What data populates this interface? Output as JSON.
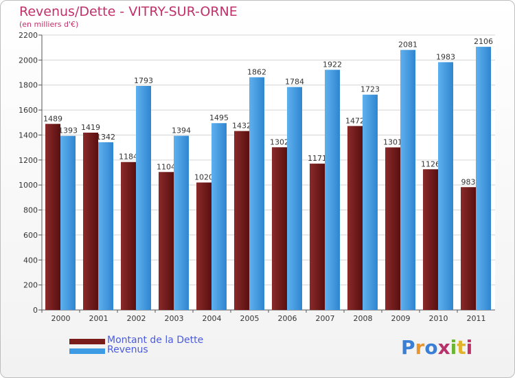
{
  "chart_data": {
    "type": "bar",
    "title": "Revenus/Dette - VITRY-SUR-ORNE",
    "subtitle": "(en milliers d'€)",
    "categories": [
      "2000",
      "2001",
      "2002",
      "2003",
      "2004",
      "2005",
      "2006",
      "2007",
      "2008",
      "2009",
      "2010",
      "2011"
    ],
    "series": [
      {
        "name": "Montant de la Dette",
        "color": "#7a1c1c",
        "values": [
          1489,
          1419,
          1184,
          1104,
          1020,
          1432,
          1302,
          1171,
          1472,
          1301,
          1126,
          983
        ],
        "labels": [
          "1489",
          "1419",
          "1184",
          "1104",
          "1020",
          "1432",
          "1302",
          "1171",
          "1472",
          "1301",
          "1126",
          "983"
        ]
      },
      {
        "name": "Revenus",
        "color": "#3d9be3",
        "values": [
          1393,
          1342,
          1793,
          1394,
          1495,
          1862,
          1784,
          1922,
          1723,
          2081,
          1983,
          2106
        ],
        "labels": [
          "1393",
          "1342",
          "1793",
          "1394",
          "1495",
          "1862",
          "1784",
          "1922",
          "1723",
          "2081",
          "1983",
          "2106"
        ]
      }
    ],
    "yticks": [
      "0",
      "200",
      "400",
      "600",
      "800",
      "1000",
      "1200",
      "1400",
      "1600",
      "1800",
      "2000",
      "2200"
    ],
    "ylim": [
      0,
      2200
    ],
    "grid": true,
    "legend": "bottom-left"
  },
  "logo": {
    "letters": [
      "P",
      "r",
      "o",
      "x",
      "i",
      "t",
      "i"
    ]
  }
}
